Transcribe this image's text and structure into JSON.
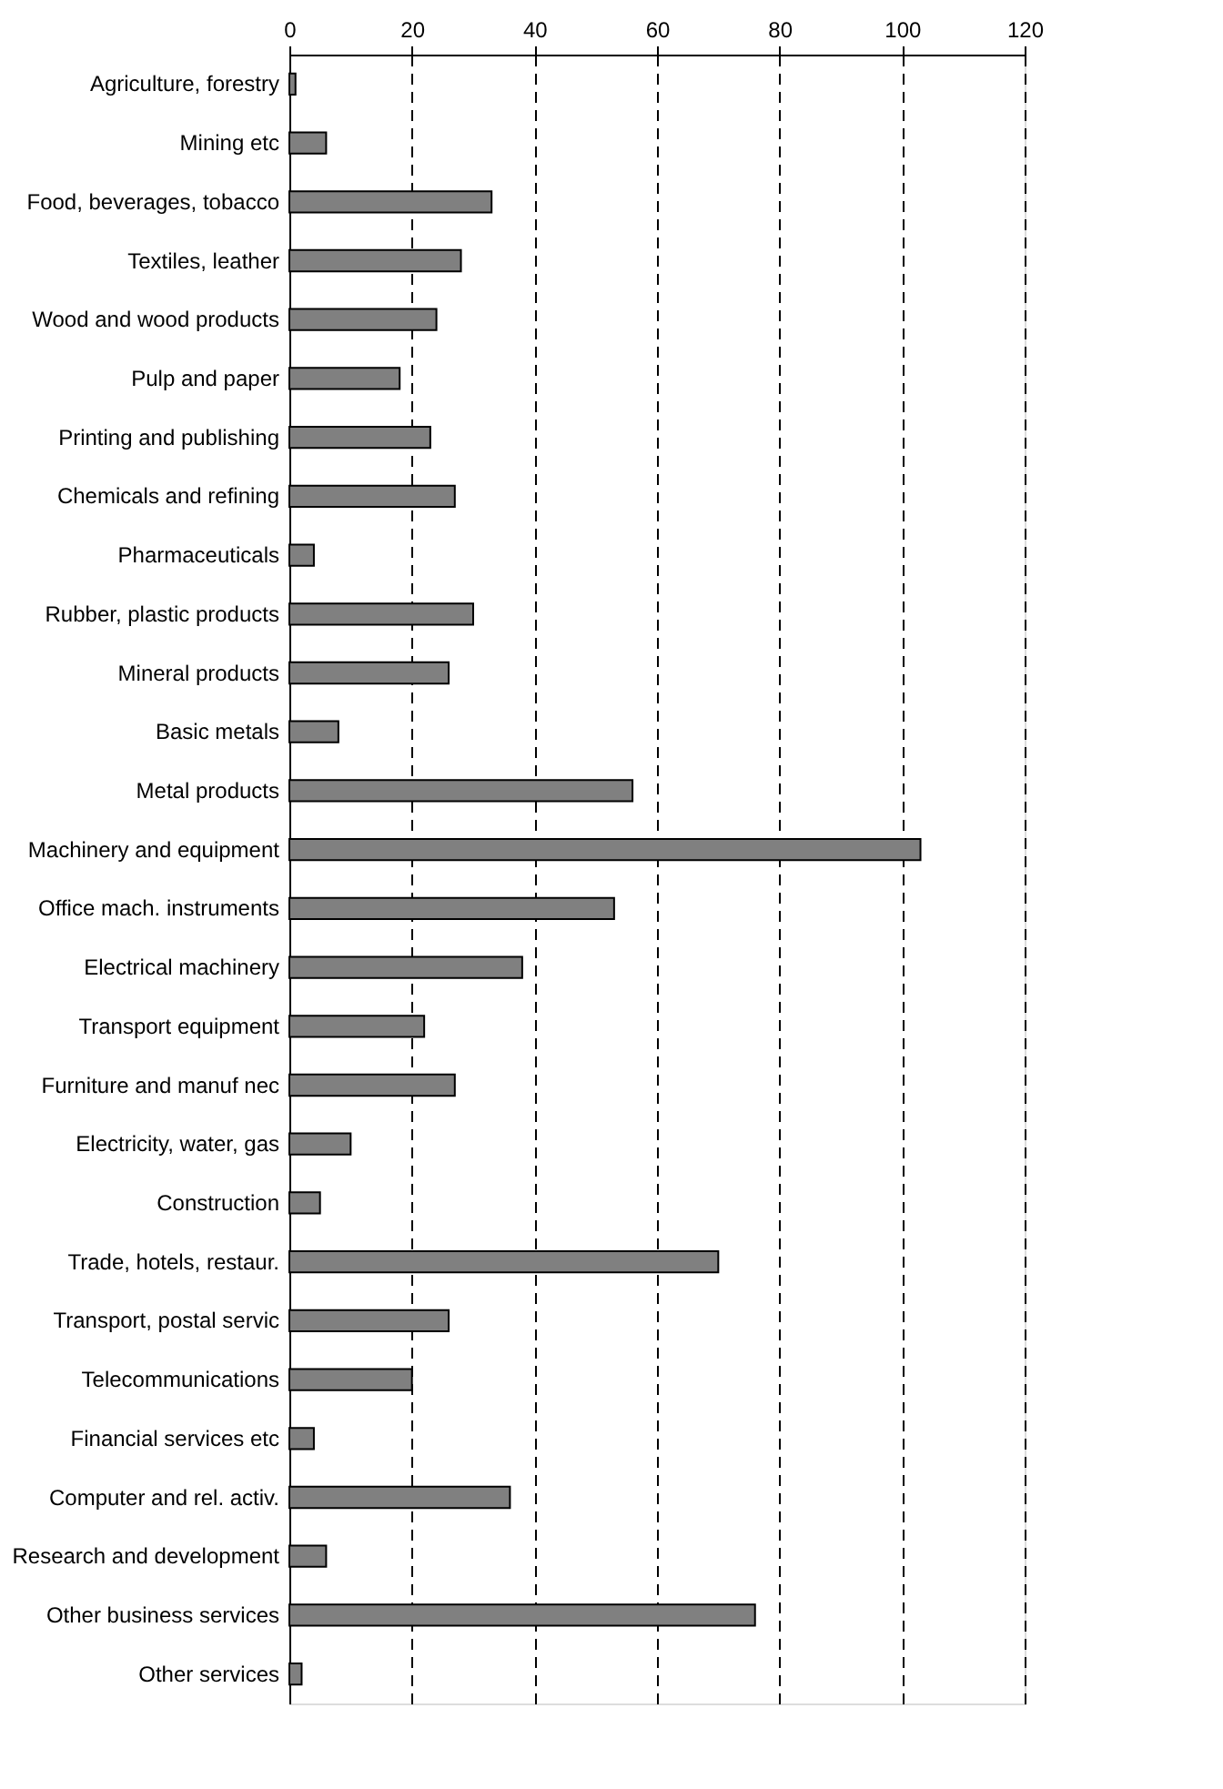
{
  "chart_data": {
    "type": "bar",
    "orientation": "horizontal",
    "categories": [
      "Agriculture, forestry",
      "Mining etc",
      "Food, beverages, tobacco",
      "Textiles, leather",
      "Wood and wood products",
      "Pulp and paper",
      "Printing and publishing",
      "Chemicals and refining",
      "Pharmaceuticals",
      "Rubber, plastic products",
      "Mineral products",
      "Basic metals",
      "Metal products",
      "Machinery and equipment",
      "Office mach. instruments",
      "Electrical machinery",
      "Transport equipment",
      "Furniture and manuf nec",
      "Electricity, water, gas",
      "Construction",
      "Trade, hotels, restaur.",
      "Transport, postal servic",
      "Telecommunications",
      "Financial services etc",
      "Computer and rel. activ.",
      "Research and development",
      "Other business services",
      "Other services"
    ],
    "values": [
      1,
      6,
      33,
      28,
      24,
      18,
      23,
      27,
      4,
      30,
      26,
      8,
      56,
      103,
      53,
      38,
      22,
      27,
      10,
      5,
      70,
      26,
      20,
      4,
      36,
      6,
      76,
      2
    ],
    "color": "#808080",
    "xlim": [
      0,
      120
    ],
    "xticks": [
      0,
      20,
      40,
      60,
      80,
      100,
      120
    ],
    "grid": "x"
  }
}
